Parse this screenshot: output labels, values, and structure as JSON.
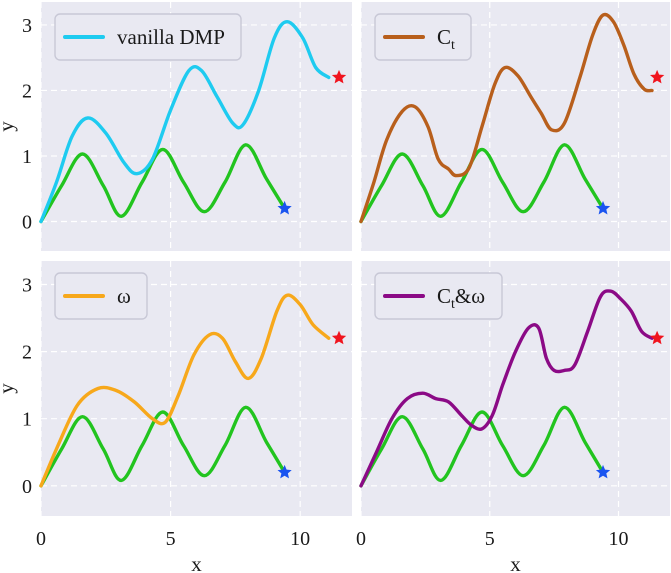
{
  "colors": {
    "background": "#e9e9f2",
    "grid": "#ffffff",
    "reference": "#22c41f",
    "start_marker": "#1a54f0",
    "goal_marker": "#f0141e"
  },
  "axis_labels": {
    "x": "x",
    "y": "y"
  },
  "chart_data": [
    {
      "type": "line",
      "legend": {
        "text": "vanilla DMP",
        "sub": "",
        "tail": "",
        "color": "#1ecbf0"
      },
      "xlim": [
        0,
        12
      ],
      "ylim": [
        -0.45,
        3.35
      ],
      "xticks": [
        "0",
        "5",
        "10"
      ],
      "yticks": [
        "0",
        "1",
        "2",
        "3"
      ],
      "show_xticks": false,
      "show_yticks": true,
      "show_xlabel": false,
      "show_ylabel": true,
      "series": [
        {
          "name": "reference",
          "points": [
            [
              0,
              0
            ],
            [
              0.8,
              0.55
            ],
            [
              1.6,
              1.03
            ],
            [
              2.4,
              0.55
            ],
            [
              3.1,
              0.08
            ],
            [
              3.9,
              0.6
            ],
            [
              4.7,
              1.1
            ],
            [
              5.5,
              0.6
            ],
            [
              6.3,
              0.15
            ],
            [
              7.1,
              0.6
            ],
            [
              7.9,
              1.17
            ],
            [
              8.7,
              0.65
            ],
            [
              9.4,
              0.2
            ]
          ]
        },
        {
          "name": "vanilla DMP",
          "points": [
            [
              0,
              0
            ],
            [
              0.6,
              0.6
            ],
            [
              1.2,
              1.3
            ],
            [
              1.8,
              1.58
            ],
            [
              2.5,
              1.35
            ],
            [
              3.2,
              0.9
            ],
            [
              3.7,
              0.73
            ],
            [
              4.3,
              0.95
            ],
            [
              5,
              1.7
            ],
            [
              5.7,
              2.3
            ],
            [
              6.2,
              2.3
            ],
            [
              6.8,
              1.9
            ],
            [
              7.4,
              1.5
            ],
            [
              7.8,
              1.48
            ],
            [
              8.4,
              2.0
            ],
            [
              9,
              2.8
            ],
            [
              9.5,
              3.05
            ],
            [
              10.1,
              2.8
            ],
            [
              10.6,
              2.35
            ],
            [
              11.1,
              2.2
            ]
          ]
        }
      ],
      "start": [
        9.4,
        0.2
      ],
      "goal": [
        11.5,
        2.2
      ]
    },
    {
      "type": "line",
      "legend": {
        "text": "C",
        "sub": "t",
        "tail": "",
        "color": "#b85f1c"
      },
      "xlim": [
        0,
        12
      ],
      "ylim": [
        -0.45,
        3.35
      ],
      "xticks": [
        "0",
        "5",
        "10"
      ],
      "yticks": [
        "0",
        "1",
        "2",
        "3"
      ],
      "show_xticks": false,
      "show_yticks": false,
      "show_xlabel": false,
      "show_ylabel": false,
      "series": [
        {
          "name": "reference",
          "points": [
            [
              0,
              0
            ],
            [
              0.8,
              0.55
            ],
            [
              1.6,
              1.03
            ],
            [
              2.4,
              0.55
            ],
            [
              3.1,
              0.08
            ],
            [
              3.9,
              0.6
            ],
            [
              4.7,
              1.1
            ],
            [
              5.5,
              0.6
            ],
            [
              6.3,
              0.15
            ],
            [
              7.1,
              0.6
            ],
            [
              7.9,
              1.17
            ],
            [
              8.7,
              0.65
            ],
            [
              9.4,
              0.2
            ]
          ]
        },
        {
          "name": "Ct",
          "points": [
            [
              0,
              0
            ],
            [
              0.5,
              0.6
            ],
            [
              1.0,
              1.25
            ],
            [
              1.6,
              1.68
            ],
            [
              2.1,
              1.75
            ],
            [
              2.6,
              1.45
            ],
            [
              3.0,
              0.95
            ],
            [
              3.4,
              0.8
            ],
            [
              3.7,
              0.7
            ],
            [
              4.2,
              0.82
            ],
            [
              4.7,
              1.45
            ],
            [
              5.2,
              2.1
            ],
            [
              5.6,
              2.35
            ],
            [
              6.1,
              2.22
            ],
            [
              6.6,
              1.9
            ],
            [
              7.0,
              1.65
            ],
            [
              7.4,
              1.4
            ],
            [
              7.9,
              1.5
            ],
            [
              8.5,
              2.2
            ],
            [
              9.0,
              2.85
            ],
            [
              9.4,
              3.15
            ],
            [
              9.8,
              3.05
            ],
            [
              10.2,
              2.7
            ],
            [
              10.6,
              2.25
            ],
            [
              11.0,
              2.02
            ],
            [
              11.3,
              2.0
            ]
          ]
        }
      ],
      "start": [
        9.4,
        0.2
      ],
      "goal": [
        11.5,
        2.2
      ]
    },
    {
      "type": "line",
      "legend": {
        "text": "ω",
        "sub": "",
        "tail": "",
        "color": "#f7a81b"
      },
      "xlim": [
        0,
        12
      ],
      "ylim": [
        -0.45,
        3.35
      ],
      "xticks": [
        "0",
        "5",
        "10"
      ],
      "yticks": [
        "0",
        "1",
        "2",
        "3"
      ],
      "show_xticks": true,
      "show_yticks": true,
      "show_xlabel": true,
      "show_ylabel": true,
      "series": [
        {
          "name": "reference",
          "points": [
            [
              0,
              0
            ],
            [
              0.8,
              0.55
            ],
            [
              1.6,
              1.03
            ],
            [
              2.4,
              0.55
            ],
            [
              3.1,
              0.08
            ],
            [
              3.9,
              0.6
            ],
            [
              4.7,
              1.1
            ],
            [
              5.5,
              0.6
            ],
            [
              6.3,
              0.15
            ],
            [
              7.1,
              0.6
            ],
            [
              7.9,
              1.17
            ],
            [
              8.7,
              0.65
            ],
            [
              9.4,
              0.2
            ]
          ]
        },
        {
          "name": "omega",
          "points": [
            [
              0,
              0
            ],
            [
              0.6,
              0.55
            ],
            [
              1.4,
              1.2
            ],
            [
              2.2,
              1.45
            ],
            [
              2.9,
              1.42
            ],
            [
              3.6,
              1.25
            ],
            [
              4.3,
              1.0
            ],
            [
              4.8,
              0.95
            ],
            [
              5.3,
              1.35
            ],
            [
              5.9,
              1.95
            ],
            [
              6.5,
              2.25
            ],
            [
              7.0,
              2.2
            ],
            [
              7.5,
              1.85
            ],
            [
              8.0,
              1.6
            ],
            [
              8.5,
              1.9
            ],
            [
              9.1,
              2.6
            ],
            [
              9.5,
              2.84
            ],
            [
              10.0,
              2.7
            ],
            [
              10.5,
              2.4
            ],
            [
              11.1,
              2.2
            ]
          ]
        }
      ],
      "start": [
        9.4,
        0.2
      ],
      "goal": [
        11.5,
        2.2
      ]
    },
    {
      "type": "line",
      "legend": {
        "text": "C",
        "sub": "t",
        "tail": "&ω",
        "color": "#8b0a86"
      },
      "xlim": [
        0,
        12
      ],
      "ylim": [
        -0.45,
        3.35
      ],
      "xticks": [
        "0",
        "5",
        "10"
      ],
      "yticks": [
        "0",
        "1",
        "2",
        "3"
      ],
      "show_xticks": true,
      "show_yticks": false,
      "show_xlabel": true,
      "show_ylabel": false,
      "series": [
        {
          "name": "reference",
          "points": [
            [
              0,
              0
            ],
            [
              0.8,
              0.55
            ],
            [
              1.6,
              1.03
            ],
            [
              2.4,
              0.55
            ],
            [
              3.1,
              0.08
            ],
            [
              3.9,
              0.6
            ],
            [
              4.7,
              1.1
            ],
            [
              5.5,
              0.6
            ],
            [
              6.3,
              0.15
            ],
            [
              7.1,
              0.6
            ],
            [
              7.9,
              1.17
            ],
            [
              8.7,
              0.65
            ],
            [
              9.4,
              0.2
            ]
          ]
        },
        {
          "name": "Ct&omega",
          "points": [
            [
              0,
              0
            ],
            [
              0.6,
              0.5
            ],
            [
              1.2,
              1.0
            ],
            [
              1.8,
              1.3
            ],
            [
              2.4,
              1.38
            ],
            [
              2.9,
              1.3
            ],
            [
              3.4,
              1.25
            ],
            [
              3.9,
              1.05
            ],
            [
              4.3,
              0.9
            ],
            [
              4.7,
              0.85
            ],
            [
              5.1,
              1.05
            ],
            [
              5.5,
              1.5
            ],
            [
              6.0,
              2.0
            ],
            [
              6.5,
              2.35
            ],
            [
              6.9,
              2.35
            ],
            [
              7.2,
              1.9
            ],
            [
              7.5,
              1.72
            ],
            [
              7.9,
              1.72
            ],
            [
              8.3,
              1.8
            ],
            [
              8.8,
              2.3
            ],
            [
              9.3,
              2.82
            ],
            [
              9.7,
              2.9
            ],
            [
              10.1,
              2.78
            ],
            [
              10.5,
              2.6
            ],
            [
              10.9,
              2.3
            ],
            [
              11.3,
              2.2
            ]
          ]
        }
      ],
      "start": [
        9.4,
        0.2
      ],
      "goal": [
        11.5,
        2.2
      ]
    }
  ]
}
